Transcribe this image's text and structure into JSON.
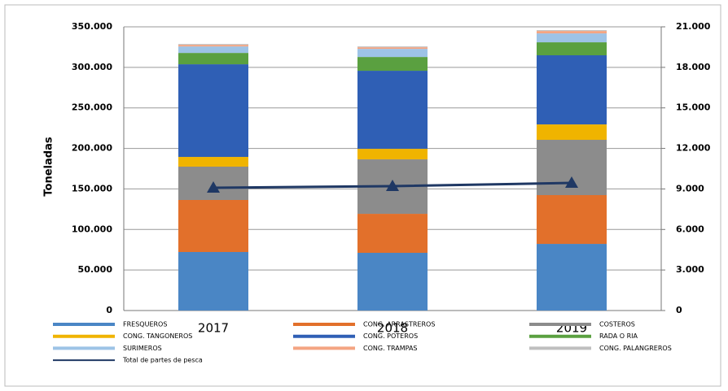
{
  "chart_data": {
    "type": "bar",
    "stacked": true,
    "y_label": "Toneladas",
    "categories": [
      "2017",
      "2018",
      "2019"
    ],
    "series": [
      {
        "name": "FRESQUEROS",
        "color": "#4a86c5",
        "values": [
          72200,
          71200,
          82200
        ]
      },
      {
        "name": "CONG. ARRASTREROS",
        "color": "#e2702b",
        "values": [
          64200,
          48100,
          60200
        ]
      },
      {
        "name": "COSTEROS",
        "color": "#8c8c8c",
        "values": [
          41100,
          67200,
          68200
        ]
      },
      {
        "name": "CONG. TANGONEROS",
        "color": "#f0b400",
        "values": [
          12000,
          13000,
          19000
        ]
      },
      {
        "name": "CONG. POTEROS",
        "color": "#2f5fb5",
        "values": [
          114300,
          96300,
          85300
        ]
      },
      {
        "name": "RADA O RIA",
        "color": "#5aa040",
        "values": [
          14000,
          17000,
          16000
        ]
      },
      {
        "name": "SURIMEROS",
        "color": "#9dc3e6",
        "values": [
          8000,
          10000,
          11000
        ]
      },
      {
        "name": "CONG. TRAMPAS",
        "color": "#f4a582",
        "values": [
          2000,
          2000,
          3000
        ]
      },
      {
        "name": "CONG. PALANGREROS",
        "color": "#bfbfbf",
        "values": [
          1000,
          1000,
          1000
        ]
      },
      {
        "name": "Total de partes de pesca",
        "color": "#1f3864",
        "type": "line",
        "axis": "y2",
        "values": [
          9086,
          9206,
          9447
        ]
      }
    ],
    "ylim": [
      0,
      350000
    ],
    "yticks": [
      0,
      {
        "value": 50000,
        "label": "50.000"
      },
      {
        "value": 100000,
        "label": "100.000"
      },
      {
        "value": 150000,
        "label": "150.000"
      },
      {
        "value": 200000,
        "label": "200.000"
      },
      {
        "value": 250000,
        "label": "250.000"
      },
      {
        "value": 300000,
        "label": "300.000"
      },
      {
        "value": 350000,
        "label": "350.000"
      }
    ],
    "y2lim": [
      0,
      21000
    ],
    "y2ticks": [
      0,
      {
        "value": 3000,
        "label": "3.000"
      },
      {
        "value": 6000,
        "label": "6.000"
      },
      {
        "value": 9000,
        "label": "9.000"
      },
      {
        "value": 12000,
        "label": "12.000"
      },
      {
        "value": 15000,
        "label": "15.000"
      },
      {
        "value": 18000,
        "label": "18.000"
      },
      {
        "value": 21000,
        "label": "21.000"
      }
    ],
    "grid": true,
    "legend": "bottom"
  }
}
